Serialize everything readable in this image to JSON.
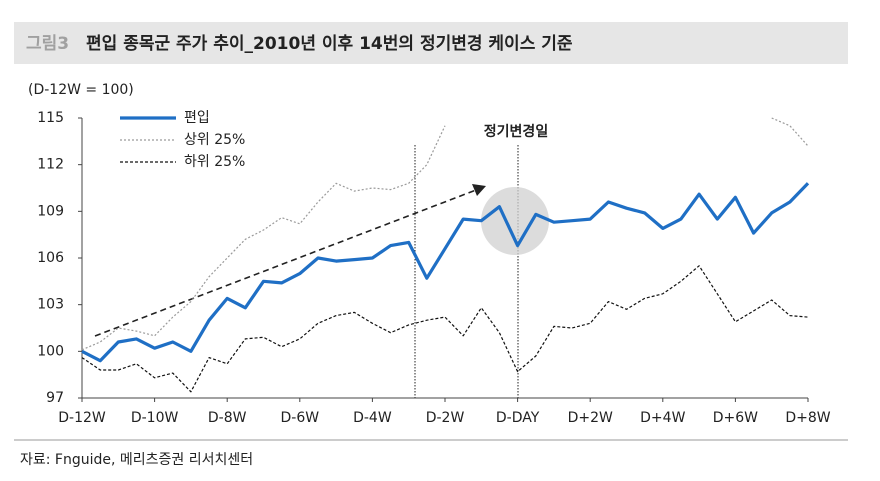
{
  "header": {
    "figure_label": "그림3",
    "title": "편입 종목군 주가 추이_2010년 이후 14번의 정기변경 케이스 기준"
  },
  "chart_data": {
    "type": "line",
    "y_unit_label": "(D-12W = 100)",
    "x": [
      -12,
      -11.5,
      -11,
      -10.5,
      -10,
      -9.5,
      -9,
      -8.5,
      -8,
      -7.5,
      -7,
      -6.5,
      -6,
      -5.5,
      -5,
      -4.5,
      -4,
      -3.5,
      -3,
      -2.5,
      -2,
      -1.5,
      -1,
      -0.5,
      0,
      0.5,
      1,
      1.5,
      2,
      2.5,
      3,
      3.5,
      4,
      4.5,
      5,
      5.5,
      6,
      6.5,
      7,
      7.5,
      8
    ],
    "series": [
      {
        "name": "편입",
        "color": "#1f6fc5",
        "style": "solid",
        "values": [
          100.0,
          99.4,
          100.6,
          100.8,
          100.2,
          100.6,
          100.0,
          102.0,
          103.4,
          102.8,
          104.5,
          104.4,
          105.0,
          106.0,
          105.8,
          105.9,
          106.0,
          106.8,
          107.0,
          104.7,
          106.6,
          108.5,
          108.4,
          109.3,
          106.8,
          108.8,
          108.3,
          108.4,
          108.5,
          109.6,
          109.2,
          108.9,
          107.9,
          108.5,
          110.1,
          108.5,
          109.9,
          107.6,
          108.9,
          109.6,
          110.8
        ]
      },
      {
        "name": "상위 25%",
        "color": "#9a9a9a",
        "style": "dotted",
        "values": [
          100.1,
          100.6,
          101.5,
          101.3,
          101.0,
          102.2,
          103.2,
          104.8,
          106.0,
          107.2,
          107.8,
          108.6,
          108.2,
          109.6,
          110.8,
          110.3,
          110.5,
          110.4,
          110.8,
          112.0,
          114.5,
          null,
          null,
          null,
          null,
          null,
          null,
          null,
          null,
          null,
          null,
          null,
          null,
          null,
          null,
          null,
          null,
          null,
          115.0,
          114.5,
          113.2
        ]
      },
      {
        "name": "하위 25%",
        "color": "#111111",
        "style": "dashed",
        "values": [
          99.6,
          98.8,
          98.8,
          99.2,
          98.3,
          98.6,
          97.4,
          99.6,
          99.2,
          100.8,
          100.9,
          100.3,
          100.8,
          101.8,
          102.3,
          102.5,
          101.8,
          101.2,
          101.7,
          102.0,
          102.2,
          101.0,
          102.8,
          101.2,
          98.7,
          99.7,
          101.6,
          101.5,
          101.8,
          103.2,
          102.7,
          103.4,
          103.7,
          104.5,
          105.5,
          103.7,
          101.9,
          102.6,
          103.3,
          102.3,
          102.2
        ]
      }
    ],
    "xlim": [
      -12,
      8
    ],
    "xticks": [
      {
        "value": -12,
        "label": "D-12W"
      },
      {
        "value": -10,
        "label": "D-10W"
      },
      {
        "value": -8,
        "label": "D-8W"
      },
      {
        "value": -6,
        "label": "D-6W"
      },
      {
        "value": -4,
        "label": "D-4W"
      },
      {
        "value": -2,
        "label": "D-2W"
      },
      {
        "value": 0,
        "label": "D-DAY"
      },
      {
        "value": 2,
        "label": "D+2W"
      },
      {
        "value": 4,
        "label": "D+4W"
      },
      {
        "value": 6,
        "label": "D+6W"
      },
      {
        "value": 8,
        "label": "D+8W"
      }
    ],
    "ylim": [
      97,
      115
    ],
    "yticks": [
      97,
      100,
      103,
      106,
      109,
      112,
      115
    ],
    "grid": false,
    "legend": "top-left",
    "event_label": "정기변경일"
  },
  "source": "자료: Fnguide, 메리츠증권 리서치센터"
}
